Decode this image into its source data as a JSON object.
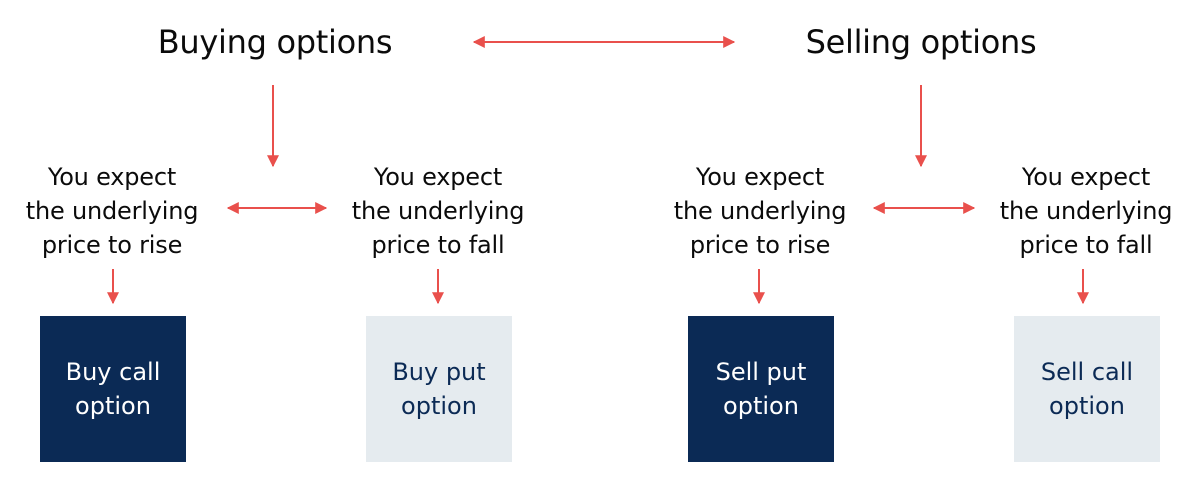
{
  "headings": {
    "buying": "Buying options",
    "selling": "Selling options"
  },
  "conditions": [
    {
      "text": "You expect\nthe underlying\nprice to rise"
    },
    {
      "text": "You expect\nthe underlying\nprice to fall"
    },
    {
      "text": "You expect\nthe underlying\nprice to rise"
    },
    {
      "text": "You expect\nthe underlying\nprice to fall"
    }
  ],
  "outcomes": [
    {
      "label": "Buy call\noption",
      "style": "dark"
    },
    {
      "label": "Buy put\noption",
      "style": "light"
    },
    {
      "label": "Sell put\noption",
      "style": "dark"
    },
    {
      "label": "Sell call\noption",
      "style": "light"
    }
  ],
  "colors": {
    "arrow": "#e9504c",
    "dark_box": "#0b2a55",
    "light_box": "#e5ebef",
    "text": "#0b0b0b"
  }
}
